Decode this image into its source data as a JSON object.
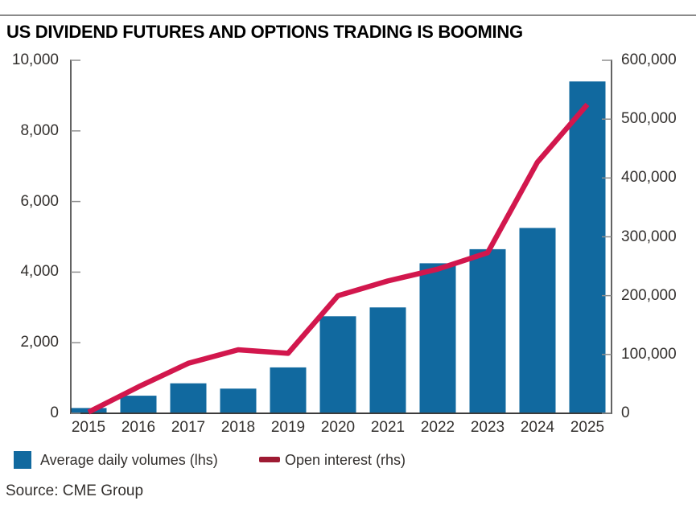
{
  "title": "US DIVIDEND FUTURES AND OPTIONS TRADING IS BOOMING",
  "source": "Source: CME Group",
  "legend": {
    "bars": {
      "label": "Average daily volumes (lhs)"
    },
    "line": {
      "label": "Open interest (rhs)"
    }
  },
  "colors": {
    "bar": "#11699f",
    "line": "#d2174d",
    "legend_dash": "#9e1b33",
    "axis": "#3c3c3c",
    "tick": "#8f8f8f",
    "top_rule": "#8a8a8a",
    "text": "#33302e",
    "title_text": "#000000",
    "background": "#ffffff"
  },
  "chart_data": {
    "type": "bar",
    "subtype": "dual-axis combo: bars (left axis) + line (right axis)",
    "title": "US DIVIDEND FUTURES AND OPTIONS TRADING IS BOOMING",
    "categories": [
      "2015",
      "2016",
      "2017",
      "2018",
      "2019",
      "2020",
      "2021",
      "2022",
      "2023",
      "2024",
      "2025"
    ],
    "series": [
      {
        "name": "Average daily volumes (lhs)",
        "type": "bar",
        "axis": "left",
        "values": [
          150,
          500,
          850,
          700,
          1300,
          2750,
          3000,
          4250,
          4650,
          5250,
          9400
        ]
      },
      {
        "name": "Open interest (rhs)",
        "type": "line",
        "axis": "right",
        "values": [
          2000,
          45000,
          85000,
          108000,
          102000,
          200000,
          225000,
          245000,
          273000,
          427000,
          525000
        ]
      }
    ],
    "left_axis": {
      "range": [
        0,
        10000
      ],
      "ticks": [
        {
          "value": 0,
          "label": "0"
        },
        {
          "value": 2000,
          "label": "2,000"
        },
        {
          "value": 4000,
          "label": "4,000"
        },
        {
          "value": 6000,
          "label": "6,000"
        },
        {
          "value": 8000,
          "label": "8,000"
        },
        {
          "value": 10000,
          "label": "10,000"
        }
      ]
    },
    "right_axis": {
      "range": [
        0,
        600000
      ],
      "ticks": [
        {
          "value": 0,
          "label": "0"
        },
        {
          "value": 100000,
          "label": "100,000"
        },
        {
          "value": 200000,
          "label": "200,000"
        },
        {
          "value": 300000,
          "label": "300,000"
        },
        {
          "value": 400000,
          "label": "400,000"
        },
        {
          "value": 500000,
          "label": "500,000"
        },
        {
          "value": 600000,
          "label": "600,000"
        }
      ]
    },
    "grid": "none",
    "legend_position": "bottom-left"
  }
}
